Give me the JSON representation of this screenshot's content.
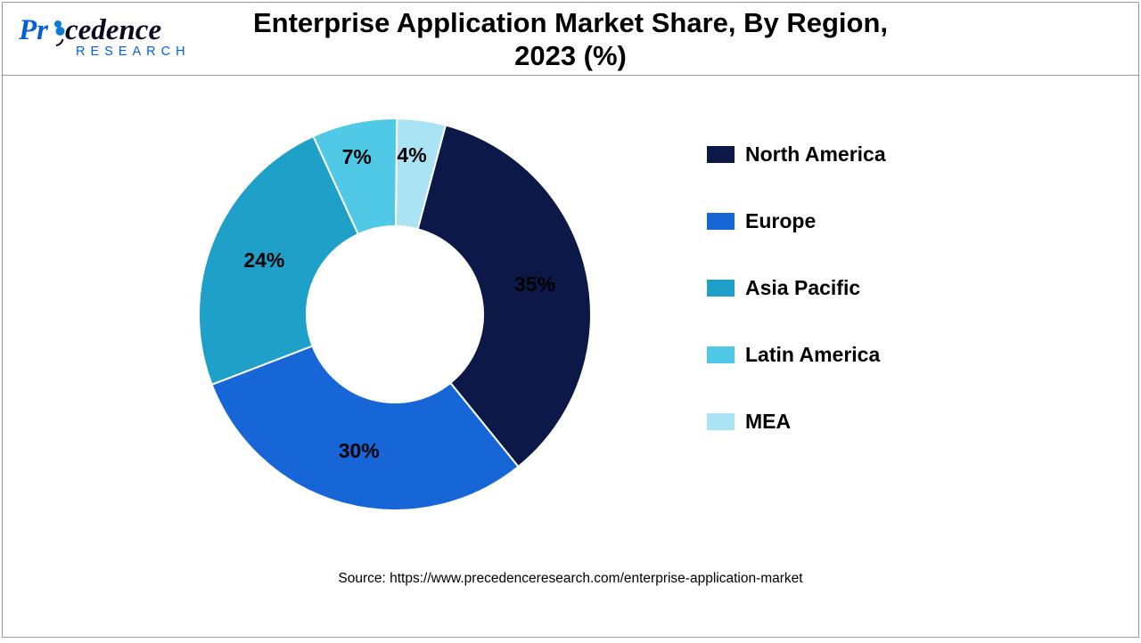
{
  "brand": {
    "name": "Precedence Research",
    "accent_primary": "#055fd8",
    "accent_dark": "#090922",
    "accent_dot": "#0b7bd6"
  },
  "title": {
    "line1": "Enterprise Application Market Share, By Region,",
    "line2": "2023 (%)",
    "fontsize": 31,
    "fontweight": 700,
    "color": "#000000"
  },
  "chart": {
    "type": "donut",
    "background_color": "#ffffff",
    "inner_radius_ratio": 0.45,
    "outer_radius": 220,
    "start_angle_deg": 15,
    "stroke": "#ffffff",
    "stroke_width": 2,
    "label_fontsize": 23,
    "label_fontweight": 700,
    "label_color": "#000000",
    "slices": [
      {
        "name": "North America",
        "value": 35,
        "label": "35%",
        "color": "#0b1848"
      },
      {
        "name": "Europe",
        "value": 30,
        "label": "30%",
        "color": "#1666d8"
      },
      {
        "name": "Asia Pacific",
        "value": 24,
        "label": "24%",
        "color": "#1ea0c9"
      },
      {
        "name": "Latin America",
        "value": 7,
        "label": "7%",
        "color": "#4fc9e6"
      },
      {
        "name": "MEA",
        "value": 4,
        "label": "4%",
        "color": "#a9e3f4"
      }
    ]
  },
  "legend": {
    "swatch_w": 31,
    "swatch_h": 19,
    "row_gap": 48,
    "fontsize": 23,
    "fontweight": 700,
    "items": [
      {
        "label": "North America",
        "color": "#0b1848"
      },
      {
        "label": "Europe",
        "color": "#1666d8"
      },
      {
        "label": "Asia Pacific",
        "color": "#1ea0c9"
      },
      {
        "label": "Latin America",
        "color": "#4fc9e6"
      },
      {
        "label": "MEA",
        "color": "#a9e3f4"
      }
    ]
  },
  "source": {
    "text": "Source: https://www.precedenceresearch.com/enterprise-application-market",
    "fontsize": 15.5,
    "color": "#000000"
  },
  "frame": {
    "border_color": "#9a9a9a",
    "border_width": 1
  }
}
